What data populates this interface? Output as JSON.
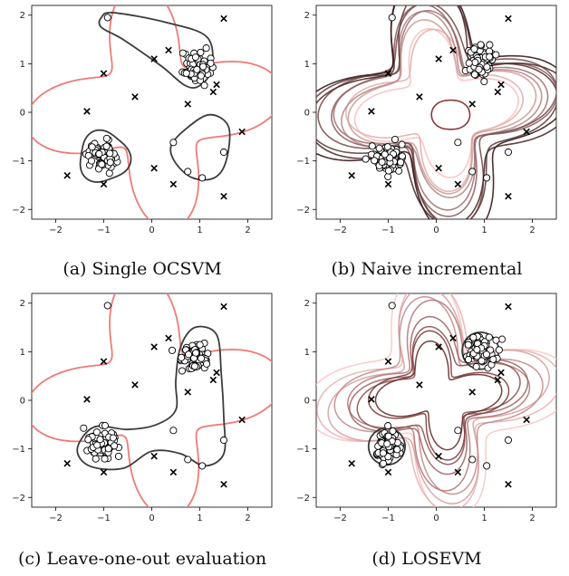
{
  "chart_data": [
    {
      "type": "scatter",
      "caption": "(a) Single OCSVM",
      "xlim": [
        -2.5,
        2.5
      ],
      "ylim": [
        -2.2,
        2.2
      ],
      "xticks": [
        -2,
        -1,
        0,
        1,
        2
      ],
      "yticks": [
        -2,
        -1,
        0,
        1,
        2
      ],
      "colors": {
        "outer": "#ee7b78",
        "inner": "#3c3c3c"
      },
      "outlier_points": [
        [
          -1.76,
          -1.3
        ],
        [
          -1.35,
          0.02
        ],
        [
          -1.0,
          -1.48
        ],
        [
          -1.0,
          0.8
        ],
        [
          -0.35,
          0.32
        ],
        [
          0.05,
          1.1
        ],
        [
          0.35,
          1.28
        ],
        [
          0.45,
          -1.48
        ],
        [
          0.75,
          0.17
        ],
        [
          1.28,
          0.42
        ],
        [
          1.35,
          0.57
        ],
        [
          1.5,
          1.93
        ],
        [
          1.5,
          -1.73
        ],
        [
          1.88,
          -0.4
        ],
        [
          0.05,
          -1.15
        ]
      ],
      "normal_points": [
        [
          -0.92,
          1.95
        ],
        [
          0.45,
          -0.62
        ],
        [
          0.75,
          -1.22
        ],
        [
          1.05,
          -1.35
        ],
        [
          1.5,
          -0.82
        ]
      ],
      "clusters": [
        {
          "center": [
            -1.03,
            -0.88
          ],
          "n": 70
        },
        {
          "center": [
            0.88,
            0.92
          ],
          "n": 70
        }
      ],
      "contours": [
        "outer",
        "inner_top",
        "inner_left",
        "inner_right"
      ]
    },
    {
      "type": "scatter",
      "caption": "(b) Naive incremental",
      "xlim": [
        -2.5,
        2.5
      ],
      "ylim": [
        -2.2,
        2.2
      ],
      "xticks": [
        -2,
        -1,
        0,
        1,
        2
      ],
      "yticks": [
        -2,
        -1,
        0,
        1,
        2
      ],
      "colors": {
        "outer": "#ee7b78",
        "inner": "#3c3c3c"
      },
      "outlier_points": [
        [
          -1.76,
          -1.3
        ],
        [
          -1.35,
          0.02
        ],
        [
          -1.0,
          -1.48
        ],
        [
          -1.0,
          0.8
        ],
        [
          -0.35,
          0.32
        ],
        [
          0.05,
          1.1
        ],
        [
          0.35,
          1.28
        ],
        [
          0.45,
          -1.48
        ],
        [
          0.75,
          0.17
        ],
        [
          1.28,
          0.42
        ],
        [
          1.35,
          0.57
        ],
        [
          1.5,
          1.93
        ],
        [
          1.5,
          -1.73
        ],
        [
          1.88,
          -0.4
        ],
        [
          0.05,
          -1.15
        ]
      ],
      "normal_points": [
        [
          -0.92,
          1.95
        ],
        [
          0.45,
          -0.62
        ],
        [
          0.75,
          -1.22
        ],
        [
          1.05,
          -1.35
        ],
        [
          1.5,
          -0.82
        ]
      ],
      "clusters": [
        {
          "center": [
            -1.03,
            -0.95
          ],
          "n": 70
        },
        {
          "center": [
            0.92,
            1.02
          ],
          "n": 70
        }
      ],
      "contours": [
        "incremental"
      ]
    },
    {
      "type": "scatter",
      "caption": "(c) Leave-one-out evaluation",
      "xlim": [
        -2.5,
        2.5
      ],
      "ylim": [
        -2.2,
        2.2
      ],
      "xticks": [
        -2,
        -1,
        0,
        1,
        2
      ],
      "yticks": [
        -2,
        -1,
        0,
        1,
        2
      ],
      "colors": {
        "outer": "#ee7b78",
        "inner": "#3c3c3c"
      },
      "outlier_points": [
        [
          -1.76,
          -1.3
        ],
        [
          -1.35,
          0.02
        ],
        [
          -1.0,
          -1.48
        ],
        [
          -1.0,
          0.8
        ],
        [
          -0.35,
          0.32
        ],
        [
          0.05,
          1.1
        ],
        [
          0.35,
          1.28
        ],
        [
          0.45,
          -1.48
        ],
        [
          0.75,
          0.17
        ],
        [
          1.28,
          0.42
        ],
        [
          1.35,
          0.57
        ],
        [
          1.5,
          1.93
        ],
        [
          1.5,
          -1.73
        ],
        [
          1.88,
          -0.4
        ],
        [
          0.05,
          -1.15
        ]
      ],
      "normal_points": [
        [
          -0.92,
          1.95
        ],
        [
          0.45,
          -0.62
        ],
        [
          0.75,
          -1.22
        ],
        [
          1.05,
          -1.35
        ],
        [
          1.5,
          -0.82
        ]
      ],
      "clusters": [
        {
          "center": [
            -1.03,
            -0.88
          ],
          "n": 70
        },
        {
          "center": [
            0.88,
            0.92
          ],
          "n": 70
        }
      ],
      "contours": [
        "outer",
        "loo_inner"
      ]
    },
    {
      "type": "scatter",
      "caption": "(d) LOSEVM",
      "xlim": [
        -2.5,
        2.5
      ],
      "ylim": [
        -2.2,
        2.2
      ],
      "xticks": [
        -2,
        -1,
        0,
        1,
        2
      ],
      "yticks": [
        -2,
        -1,
        0,
        1,
        2
      ],
      "colors": {
        "outer": "#ee7b78",
        "inner": "#3c3c3c"
      },
      "outlier_points": [
        [
          -1.76,
          -1.3
        ],
        [
          -1.35,
          0.02
        ],
        [
          -1.0,
          -1.48
        ],
        [
          -1.0,
          0.8
        ],
        [
          -0.35,
          0.32
        ],
        [
          0.05,
          1.1
        ],
        [
          0.35,
          1.28
        ],
        [
          0.45,
          -1.48
        ],
        [
          0.75,
          0.17
        ],
        [
          1.28,
          0.42
        ],
        [
          1.35,
          0.57
        ],
        [
          1.5,
          1.93
        ],
        [
          1.5,
          -1.73
        ],
        [
          1.88,
          -0.4
        ],
        [
          0.05,
          -1.15
        ]
      ],
      "normal_points": [
        [
          -0.92,
          1.95
        ],
        [
          0.45,
          -0.62
        ],
        [
          0.75,
          -1.22
        ],
        [
          1.05,
          -1.35
        ],
        [
          1.5,
          -0.82
        ]
      ],
      "clusters": [
        {
          "center": [
            -1.03,
            -0.95
          ],
          "n": 70
        },
        {
          "center": [
            0.92,
            1.02
          ],
          "n": 70
        }
      ],
      "contours": [
        "losevm"
      ]
    }
  ]
}
